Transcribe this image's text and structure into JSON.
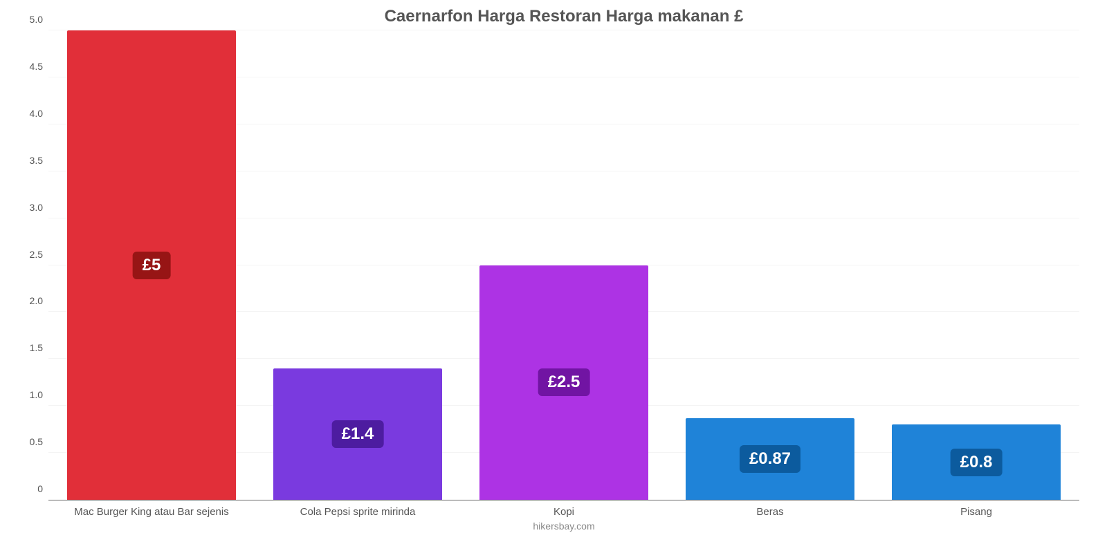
{
  "chart": {
    "type": "bar",
    "title": "Caernarfon Harga Restoran Harga makanan £",
    "title_fontsize": 24,
    "title_color": "#555555",
    "credit": "hikersbay.com",
    "credit_color": "#888888",
    "background_color": "#ffffff",
    "axis_color": "#666666",
    "tick_color": "#555555",
    "grid_color": "#f4f4f4",
    "ymin": 0,
    "ymax": 5,
    "ytick_step": 0.5,
    "yticks": [
      "0",
      "0.5",
      "1.0",
      "1.5",
      "2.0",
      "2.5",
      "3.0",
      "3.5",
      "4.0",
      "4.5",
      "5.0"
    ],
    "bar_width_pct": 82,
    "label_fontsize": 24,
    "label_radius": 6,
    "categories": [
      "Mac Burger King atau Bar sejenis",
      "Cola Pepsi sprite mirinda",
      "Kopi",
      "Beras",
      "Pisang"
    ],
    "values": [
      5,
      1.4,
      2.5,
      0.87,
      0.8
    ],
    "value_labels": [
      "£5",
      "£1.4",
      "£2.5",
      "£0.87",
      "£0.8"
    ],
    "bar_colors": [
      "#e12f39",
      "#7a3adf",
      "#ad33e4",
      "#1f83d8",
      "#1f83d8"
    ],
    "label_bg_colors": [
      "#971515",
      "#4d1ca0",
      "#7114a3",
      "#0c5b9e",
      "#0c5b9e"
    ],
    "label_text_color": "#ffffff"
  }
}
